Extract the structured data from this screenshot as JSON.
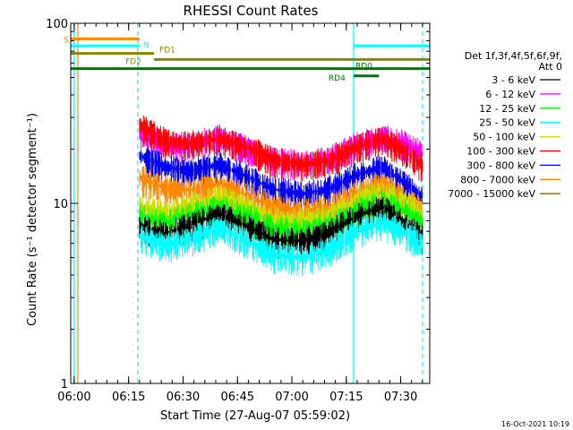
{
  "chart_data": {
    "type": "line",
    "title": "RHESSI Count Rates",
    "xlabel": "Start Time (27-Aug-07 05:59:02)",
    "ylabel": "Count Rate (s⁻¹ detector segment⁻¹)",
    "yscale": "log",
    "ylim": [
      1,
      100
    ],
    "xlim": [
      "05:59:02",
      "07:38"
    ],
    "x_ticks": [
      "06:00",
      "06:15",
      "06:30",
      "06:45",
      "07:00",
      "07:15",
      "07:30"
    ],
    "y_ticks": [
      "1",
      "10",
      "100"
    ],
    "footer_date": "16-Oct-2021 10:19",
    "legend": {
      "header_line1": "Det 1f,3f,4f,5f,6f,9f,",
      "header_line2": "Att 0",
      "position": "right"
    },
    "series": [
      {
        "name": "3 - 6 keV",
        "color": "#000000",
        "x": [
          "06:18",
          "06:25",
          "06:32",
          "06:40",
          "06:48",
          "06:55",
          "07:03",
          "07:10",
          "07:18",
          "07:25",
          "07:30",
          "07:36"
        ],
        "values": [
          7.5,
          6.8,
          7.6,
          8.8,
          7.4,
          6.3,
          6.2,
          6.9,
          8.6,
          9.6,
          8.0,
          6.6
        ]
      },
      {
        "name": "6 - 12 keV",
        "color": "#ff00ff",
        "x": [
          "06:18",
          "06:25",
          "06:32",
          "06:40",
          "06:48",
          "06:55",
          "07:03",
          "07:10",
          "07:18",
          "07:25",
          "07:30",
          "07:36"
        ],
        "values": [
          25.5,
          21.0,
          21.5,
          23.5,
          20.0,
          17.5,
          16.8,
          17.8,
          21.5,
          23.5,
          22.0,
          19.0
        ]
      },
      {
        "name": "12 - 25 keV",
        "color": "#00ff00",
        "x": [
          "06:18",
          "06:25",
          "06:32",
          "06:40",
          "06:48",
          "06:55",
          "07:03",
          "07:10",
          "07:18",
          "07:25",
          "07:30",
          "07:36"
        ],
        "values": [
          8.6,
          7.8,
          8.6,
          9.6,
          8.4,
          7.3,
          7.0,
          7.5,
          9.2,
          10.2,
          9.3,
          7.8
        ]
      },
      {
        "name": "25 - 50 keV",
        "color": "#00ffff",
        "x": [
          "06:18",
          "06:25",
          "06:32",
          "06:40",
          "06:48",
          "06:55",
          "07:03",
          "07:10",
          "07:18",
          "07:25",
          "07:30",
          "07:36"
        ],
        "values": [
          6.6,
          5.9,
          6.4,
          7.4,
          6.1,
          5.2,
          5.0,
          5.5,
          7.1,
          7.9,
          7.1,
          6.0
        ]
      },
      {
        "name": "50 - 100 keV",
        "color": "#ccdd00",
        "x": [
          "06:18",
          "06:25",
          "06:32",
          "06:40",
          "06:48",
          "06:55",
          "07:03",
          "07:10",
          "07:18",
          "07:25",
          "07:30",
          "07:36"
        ],
        "values": [
          9.6,
          8.9,
          9.7,
          10.9,
          9.4,
          8.2,
          8.0,
          8.5,
          10.4,
          11.6,
          10.3,
          8.9
        ]
      },
      {
        "name": "100 - 300 keV",
        "color": "#ff0000",
        "x": [
          "06:18",
          "06:25",
          "06:32",
          "06:40",
          "06:48",
          "06:55",
          "07:03",
          "07:10",
          "07:18",
          "07:25",
          "07:30",
          "07:36"
        ],
        "values": [
          27.5,
          22.5,
          21.5,
          23.0,
          20.5,
          17.5,
          16.5,
          17.2,
          20.8,
          23.0,
          20.2,
          16.2
        ]
      },
      {
        "name": "300 - 800 keV",
        "color": "#0000ff",
        "x": [
          "06:18",
          "06:25",
          "06:32",
          "06:40",
          "06:48",
          "06:55",
          "07:03",
          "07:10",
          "07:18",
          "07:25",
          "07:30",
          "07:36"
        ],
        "values": [
          18.5,
          16.0,
          15.2,
          16.5,
          14.0,
          12.0,
          11.3,
          12.0,
          14.5,
          16.0,
          13.5,
          10.8
        ]
      },
      {
        "name": "800 - 7000 keV",
        "color": "#ff8800",
        "x": [
          "06:18",
          "06:25",
          "06:32",
          "06:40",
          "06:48",
          "06:55",
          "07:03",
          "07:10",
          "07:18",
          "07:25",
          "07:30",
          "07:36"
        ],
        "values": [
          14.0,
          12.2,
          11.9,
          12.8,
          11.0,
          9.5,
          9.0,
          9.4,
          11.5,
          12.8,
          11.2,
          9.3
        ]
      },
      {
        "name": "7000 - 15000 keV",
        "color": "#886600",
        "x": [],
        "values": []
      }
    ],
    "attenuator_bars": [
      {
        "label": "S",
        "color": "#ff8800",
        "start": "05:59:02",
        "end": "06:18",
        "level": 82
      },
      {
        "label": "N",
        "color": "#00ffff",
        "start": "05:59:02",
        "end": "06:18",
        "level": 75
      },
      {
        "label": "N",
        "color": "#00ffff",
        "start": "07:17",
        "end": "07:38",
        "level": 75
      },
      {
        "label": "FD1",
        "color": "#888800",
        "start": "05:59:02",
        "end": "06:22",
        "level": 68
      },
      {
        "label": "FD2",
        "color": "#888800",
        "start": "06:22",
        "end": "07:38",
        "level": 63
      },
      {
        "label": "RD0",
        "color": "#007700",
        "start": "05:59:02",
        "end": "07:38",
        "level": 56
      },
      {
        "label": "RD4",
        "color": "#007700",
        "start": "07:17",
        "end": "07:24",
        "level": 51
      }
    ],
    "vertical_markers": [
      {
        "time": "06:00",
        "color": "#00ffff",
        "style": "solid"
      },
      {
        "time": "06:01",
        "color": "#ff8800",
        "style": "solid"
      },
      {
        "time": "06:17:30",
        "color": "#00ffff",
        "style": "dashed"
      },
      {
        "time": "07:17",
        "color": "#00ffff",
        "style": "solid"
      },
      {
        "time": "07:36",
        "color": "#00ffff",
        "style": "dashed"
      }
    ],
    "grid": false
  }
}
